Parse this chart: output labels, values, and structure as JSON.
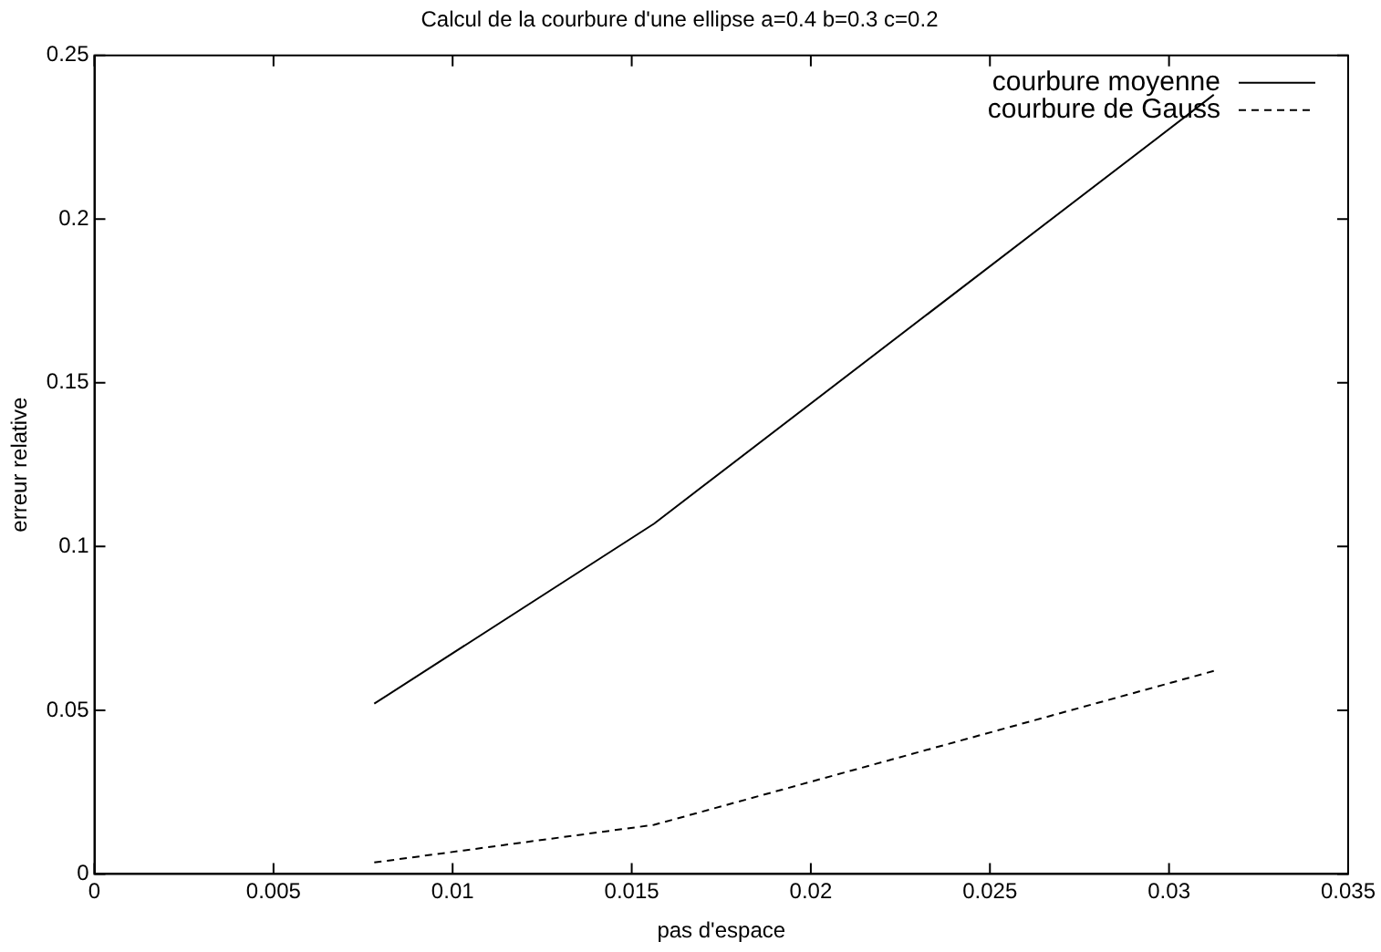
{
  "chart_data": {
    "type": "line",
    "title": "Calcul de la courbure d'une ellipse a=0.4 b=0.3 c=0.2",
    "xlabel": "pas d'espace",
    "ylabel": "erreur relative",
    "series": [
      {
        "name": "courbure moyenne",
        "color": "#000000",
        "line_style": "solid",
        "x": [
          0.0078125,
          0.015625,
          0.03125
        ],
        "values": [
          0.052,
          0.107,
          0.238
        ]
      },
      {
        "name": "courbure de Gauss",
        "color": "#000000",
        "line_style": "dashed",
        "x": [
          0.0078125,
          0.015625,
          0.03125
        ],
        "values": [
          0.0035,
          0.015,
          0.062
        ]
      }
    ],
    "xlim": [
      0,
      0.035
    ],
    "xticks": [
      0,
      0.005,
      0.01,
      0.015,
      0.02,
      0.025,
      0.03,
      0.035
    ],
    "ylim": [
      0,
      0.25
    ],
    "yticks": [
      0,
      0.05,
      0.1,
      0.15,
      0.2,
      0.25
    ],
    "grid": false,
    "legend": "top right",
    "marker": "none"
  }
}
